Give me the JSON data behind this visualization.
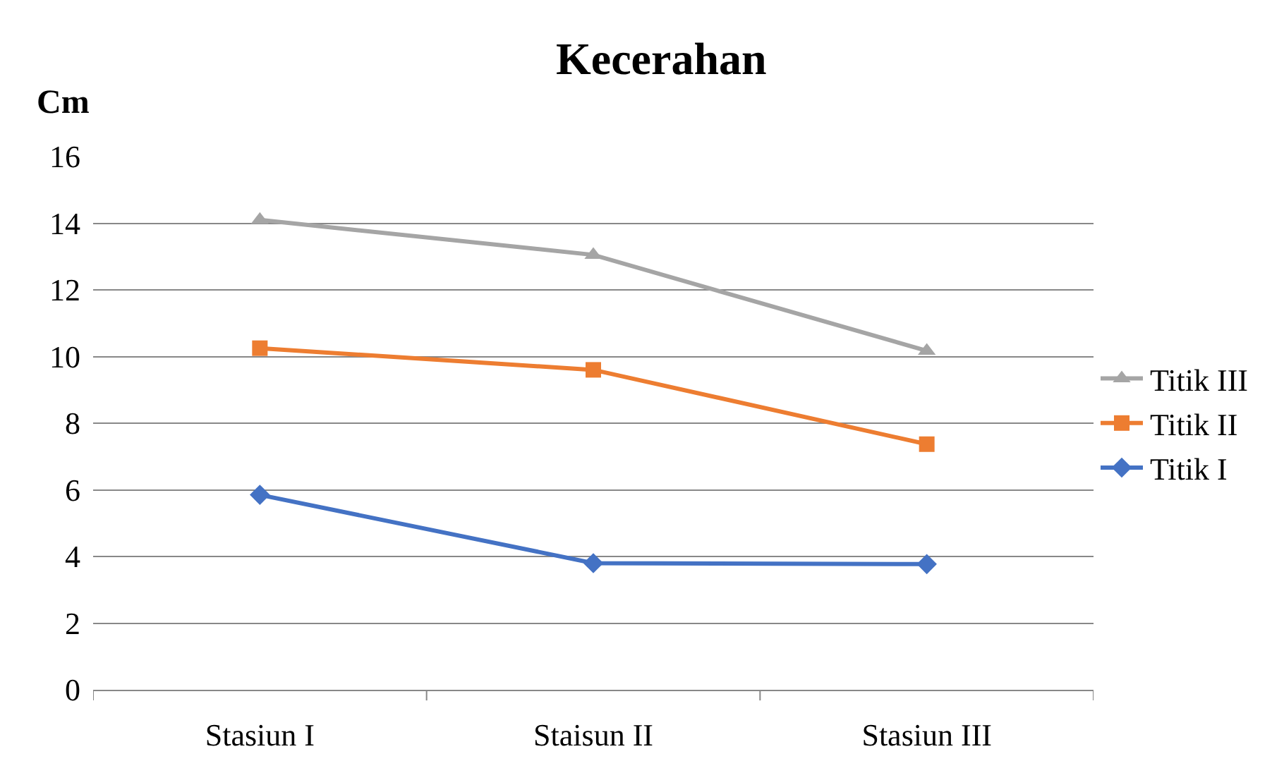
{
  "chart_data": {
    "type": "line",
    "title": "Kecerahan",
    "ylabel": "Cm",
    "categories": [
      "Stasiun I",
      "Staisun II",
      "Stasiun III"
    ],
    "series": [
      {
        "name": "Titik I",
        "color": "#4472c4",
        "marker": "diamond",
        "values": [
          5.85,
          3.8,
          3.77
        ]
      },
      {
        "name": "Titik II",
        "color": "#ed7d31",
        "marker": "square",
        "values": [
          10.25,
          9.6,
          7.37
        ]
      },
      {
        "name": "Titik III",
        "color": "#a5a5a5",
        "marker": "triangle",
        "values": [
          14.1,
          13.05,
          10.17
        ]
      }
    ],
    "ylim": [
      0,
      16
    ],
    "yticks": [
      0,
      2,
      4,
      6,
      8,
      10,
      12,
      14,
      16
    ],
    "grid": "y",
    "legend": "right",
    "line_style": "solid"
  }
}
